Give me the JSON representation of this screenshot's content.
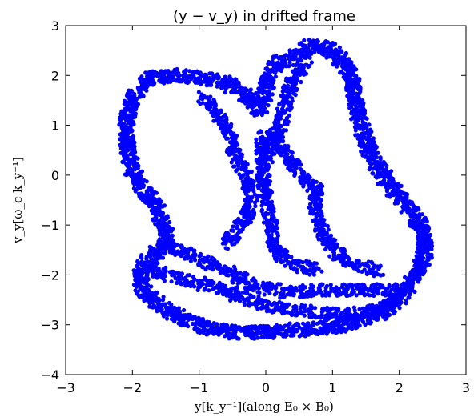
{
  "chart_data": {
    "type": "scatter",
    "title": "(y − v_y) in drifted frame",
    "xlabel": "y[k_y⁻¹](along E₀ × B₀)",
    "ylabel": "v_y[ω_c k_y⁻¹]",
    "xlim": [
      -3,
      3
    ],
    "ylim": [
      -4,
      3
    ],
    "xticks": [
      "−3",
      "−2",
      "−1",
      "0",
      "1",
      "2",
      "3"
    ],
    "yticks": [
      "−4",
      "−3",
      "−2",
      "−1",
      "0",
      "1",
      "2",
      "3"
    ],
    "grid": false,
    "marker_color": "#0000ff",
    "outline_path": [
      [
        0.0,
        1.7
      ],
      [
        0.05,
        2.05
      ],
      [
        0.2,
        2.25
      ],
      [
        0.45,
        2.4
      ],
      [
        0.7,
        2.6
      ],
      [
        0.95,
        2.55
      ],
      [
        1.15,
        2.3
      ],
      [
        1.3,
        1.9
      ],
      [
        1.35,
        1.5
      ],
      [
        1.4,
        1.1
      ],
      [
        1.55,
        0.5
      ],
      [
        1.75,
        0.0
      ],
      [
        1.95,
        -0.35
      ],
      [
        2.15,
        -0.7
      ],
      [
        2.35,
        -1.1
      ],
      [
        2.4,
        -1.5
      ],
      [
        2.3,
        -1.9
      ],
      [
        2.1,
        -2.3
      ],
      [
        1.85,
        -2.65
      ],
      [
        1.5,
        -2.9
      ],
      [
        1.0,
        -3.05
      ],
      [
        0.5,
        -3.1
      ],
      [
        0.0,
        -3.15
      ],
      [
        -0.5,
        -3.15
      ],
      [
        -0.9,
        -3.05
      ],
      [
        -1.3,
        -2.85
      ],
      [
        -1.6,
        -2.6
      ],
      [
        -1.85,
        -2.3
      ],
      [
        -1.9,
        -2.0
      ],
      [
        -1.75,
        -1.7
      ],
      [
        -1.5,
        -1.4
      ],
      [
        -1.5,
        -1.05
      ],
      [
        -1.65,
        -0.6
      ],
      [
        -1.9,
        -0.2
      ],
      [
        -2.05,
        0.3
      ],
      [
        -2.1,
        0.9
      ],
      [
        -2.05,
        1.35
      ],
      [
        -1.9,
        1.75
      ],
      [
        -1.7,
        1.95
      ],
      [
        -1.3,
        2.0
      ],
      [
        -0.95,
        1.95
      ],
      [
        -0.6,
        1.85
      ],
      [
        -0.3,
        1.6
      ],
      [
        -0.1,
        1.3
      ],
      [
        0.0,
        1.7
      ]
    ],
    "bands": [
      {
        "points": [
          [
            -0.05,
            0.8
          ],
          [
            -0.05,
            0.0
          ],
          [
            0.05,
            -0.8
          ],
          [
            0.15,
            -1.5
          ],
          [
            0.4,
            -1.8
          ],
          [
            0.8,
            -1.9
          ]
        ]
      },
      {
        "points": [
          [
            0.05,
            0.9
          ],
          [
            0.35,
            0.3
          ],
          [
            0.55,
            0.0
          ],
          [
            0.75,
            -0.3
          ],
          [
            0.75,
            -0.8
          ],
          [
            0.95,
            -1.4
          ],
          [
            1.3,
            -1.8
          ],
          [
            1.7,
            -1.9
          ]
        ]
      },
      {
        "points": [
          [
            -1.5,
            -1.4
          ],
          [
            -1.1,
            -1.6
          ],
          [
            -0.6,
            -1.9
          ],
          [
            -0.2,
            -2.2
          ],
          [
            0.3,
            -2.35
          ],
          [
            0.9,
            -2.3
          ],
          [
            1.5,
            -2.3
          ],
          [
            2.1,
            -2.3
          ]
        ]
      },
      {
        "points": [
          [
            -1.8,
            -1.9
          ],
          [
            -1.2,
            -2.1
          ],
          [
            -0.6,
            -2.3
          ],
          [
            -0.2,
            -2.55
          ],
          [
            0.4,
            -2.7
          ],
          [
            1.0,
            -2.8
          ],
          [
            1.6,
            -2.75
          ],
          [
            2.0,
            -2.5
          ]
        ]
      },
      {
        "points": [
          [
            -0.95,
            1.6
          ],
          [
            -0.7,
            1.2
          ],
          [
            -0.55,
            0.8
          ],
          [
            -0.45,
            0.4
          ],
          [
            -0.3,
            0.0
          ],
          [
            -0.2,
            -0.4
          ],
          [
            -0.3,
            -0.9
          ],
          [
            -0.6,
            -1.4
          ]
        ]
      },
      {
        "points": [
          [
            0.6,
            2.3
          ],
          [
            0.4,
            1.9
          ],
          [
            0.3,
            1.5
          ],
          [
            0.25,
            1.1
          ],
          [
            0.15,
            0.7
          ],
          [
            0.0,
            0.3
          ]
        ]
      }
    ]
  }
}
